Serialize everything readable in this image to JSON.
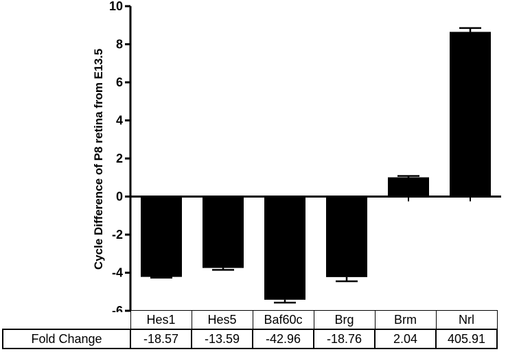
{
  "chart_data": {
    "type": "bar",
    "categories": [
      "Hes1",
      "Hes5",
      "Baf60c",
      "Brg",
      "Brm",
      "Nrl"
    ],
    "values": [
      -4.22,
      -3.75,
      -5.42,
      -4.23,
      1.01,
      8.65
    ],
    "errors": [
      0.04,
      0.1,
      0.15,
      0.22,
      0.07,
      0.2
    ],
    "ylabel": "Cycle Difference of P8 retina from E13.5",
    "ylim": [
      -6,
      10
    ],
    "yticks": [
      "10",
      "8",
      "6",
      "4",
      "2",
      "0",
      "-2",
      "-4",
      "-6"
    ],
    "bar_color": "#000000",
    "grid": false
  },
  "table": {
    "row_label": "Fold Change",
    "headers": [
      "Hes1",
      "Hes5",
      "Baf60c",
      "Brg",
      "Brm",
      "Nrl"
    ],
    "values": [
      "-18.57",
      "-13.59",
      "-42.96",
      "-18.76",
      "2.04",
      "405.91"
    ]
  }
}
